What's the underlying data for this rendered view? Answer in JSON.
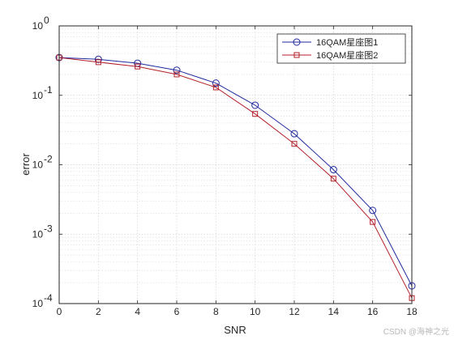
{
  "chart_data": {
    "type": "line",
    "title": "",
    "xlabel": "SNR",
    "ylabel": "error",
    "xlim": [
      0,
      18
    ],
    "ylim": [
      0.0001,
      1
    ],
    "yscale": "log",
    "grid": true,
    "x_ticks": [
      "0",
      "2",
      "4",
      "6",
      "8",
      "10",
      "12",
      "14",
      "16",
      "18"
    ],
    "y_ticks": [
      {
        "value": 0.0001,
        "base": "10",
        "exp": "-4"
      },
      {
        "value": 0.001,
        "base": "10",
        "exp": "-3"
      },
      {
        "value": 0.01,
        "base": "10",
        "exp": "-2"
      },
      {
        "value": 0.1,
        "base": "10",
        "exp": "-1"
      },
      {
        "value": 1,
        "base": "10",
        "exp": "0"
      }
    ],
    "legend_position": "top-right",
    "series": [
      {
        "name": "16QAM星座图1",
        "color": "#1f2a9c",
        "marker": "circle",
        "x": [
          0,
          2,
          4,
          6,
          8,
          10,
          12,
          14,
          16,
          18
        ],
        "y": [
          0.35,
          0.33,
          0.29,
          0.23,
          0.15,
          0.072,
          0.028,
          0.0085,
          0.0022,
          0.00018
        ]
      },
      {
        "name": "16QAM星座图2",
        "color": "#b2202a",
        "marker": "square",
        "x": [
          0,
          2,
          4,
          6,
          8,
          10,
          12,
          14,
          16,
          18
        ],
        "y": [
          0.35,
          0.3,
          0.26,
          0.2,
          0.13,
          0.054,
          0.02,
          0.0063,
          0.0015,
          0.00012
        ]
      }
    ]
  },
  "watermark": "CSDN @海神之光"
}
